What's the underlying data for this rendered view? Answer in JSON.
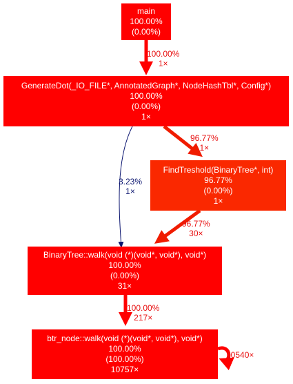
{
  "colors": {
    "main": "#ff0000",
    "findtreshold": "#fa2800",
    "hot_edge": "#ff0000",
    "findtreshold_edge": "#f01c00",
    "cold_edge": "#0c1670",
    "hot_label": "#e81010",
    "cold_label": "#0c1670"
  },
  "nodes": {
    "main": {
      "name": "main",
      "total": "100.00%",
      "self": "(0.00%)"
    },
    "generatedot": {
      "name": "GenerateDot(_IO_FILE*, AnnotatedGraph*, NodeHashTbl*, Config*)",
      "total": "100.00%",
      "self": "(0.00%)",
      "calls": "1×"
    },
    "findtreshold": {
      "name": "FindTreshold(BinaryTree*, int)",
      "total": "96.77%",
      "self": "(0.00%)",
      "calls": "1×"
    },
    "binarytree_walk": {
      "name": "BinaryTree::walk(void (*)(void*, void*), void*)",
      "total": "100.00%",
      "self": "(0.00%)",
      "calls": "31×"
    },
    "btr_node_walk": {
      "name": "btr_node::walk(void (*)(void*, void*), void*)",
      "total": "100.00%",
      "self": "(100.00%)",
      "calls": "10757×"
    }
  },
  "edges": {
    "main_to_generatedot": {
      "percent": "100.00%",
      "calls": "1×"
    },
    "generatedot_to_findtreshold": {
      "percent": "96.77%",
      "calls": "1×"
    },
    "generatedot_to_binarytree": {
      "percent": "3.23%",
      "calls": "1×"
    },
    "findtreshold_to_binarytree": {
      "percent": "96.77%",
      "calls": "30×"
    },
    "binarytree_to_btr_node": {
      "percent": "100.00%",
      "calls": "217×"
    },
    "btr_node_self": {
      "calls": "10540×"
    }
  }
}
